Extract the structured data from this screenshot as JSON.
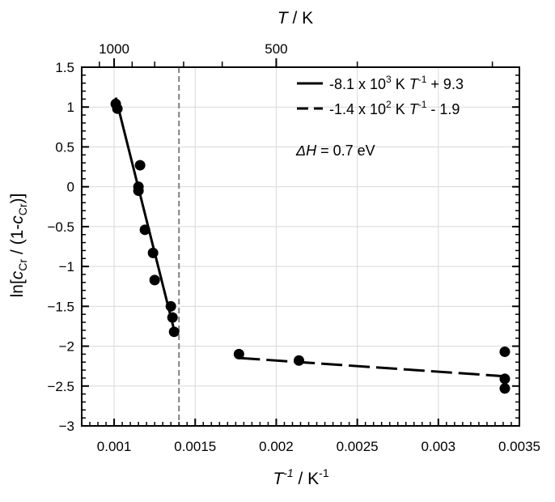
{
  "chart_data": {
    "type": "scatter",
    "title": "",
    "xlim": [
      0.0008,
      0.0035
    ],
    "ylim": [
      -3,
      1.5
    ],
    "grid": true,
    "x_ticks": [
      {
        "value": 0.001,
        "label": "0.001"
      },
      {
        "value": 0.0015,
        "label": "0.0015"
      },
      {
        "value": 0.002,
        "label": "0.002"
      },
      {
        "value": 0.0025,
        "label": "0.0025"
      },
      {
        "value": 0.003,
        "label": "0.003"
      },
      {
        "value": 0.0035,
        "label": "0.0035"
      }
    ],
    "y_ticks": [
      {
        "value": 1.5,
        "label": "1.5"
      },
      {
        "value": 1,
        "label": "1"
      },
      {
        "value": 0.5,
        "label": "0.5"
      },
      {
        "value": 0,
        "label": "0"
      },
      {
        "value": -0.5,
        "label": "−0.5"
      },
      {
        "value": -1,
        "label": "−1"
      },
      {
        "value": -1.5,
        "label": "−1.5"
      },
      {
        "value": -2,
        "label": "−2"
      },
      {
        "value": -2.5,
        "label": "−2.5"
      },
      {
        "value": -3,
        "label": "−3"
      }
    ],
    "top_axis": {
      "ticks_K": [
        {
          "value": 1000,
          "label": "1000"
        },
        {
          "value": 500,
          "label": "500"
        }
      ],
      "minor_ticks_K": [
        1100,
        1000,
        900,
        800,
        700,
        600,
        500,
        400,
        300
      ]
    },
    "points": [
      {
        "x": 0.00101,
        "y": 1.04
      },
      {
        "x": 0.00102,
        "y": 0.98
      },
      {
        "x": 0.00116,
        "y": 0.27
      },
      {
        "x": 0.00115,
        "y": 0.0
      },
      {
        "x": 0.00115,
        "y": -0.05
      },
      {
        "x": 0.00119,
        "y": -0.54
      },
      {
        "x": 0.00124,
        "y": -0.83
      },
      {
        "x": 0.00125,
        "y": -1.17
      },
      {
        "x": 0.00135,
        "y": -1.5
      },
      {
        "x": 0.00136,
        "y": -1.64
      },
      {
        "x": 0.00137,
        "y": -1.82
      },
      {
        "x": 0.00177,
        "y": -2.1
      },
      {
        "x": 0.00214,
        "y": -2.18
      },
      {
        "x": 0.00341,
        "y": -2.07
      },
      {
        "x": 0.00341,
        "y": -2.41
      },
      {
        "x": 0.00341,
        "y": -2.53
      }
    ],
    "fits": [
      {
        "slope": -8100,
        "intercept": 9.3,
        "x_range": [
          0.00101,
          0.00137
        ],
        "style": "solid"
      },
      {
        "slope": -140,
        "intercept": -1.9,
        "x_range": [
          0.00177,
          0.00341
        ],
        "style": "dashed"
      }
    ],
    "vline": {
      "x": 0.0014,
      "color": "#808080"
    },
    "colors": {
      "marker": "#000000",
      "grid": "#d9d9d9",
      "vline": "#808080",
      "axis": "#000000"
    }
  },
  "labels": {
    "x_axis": {
      "a": "T",
      "b": "-1",
      "c": " / K",
      "d": "-1"
    },
    "top_axis": {
      "a": "T",
      "b": " / K"
    },
    "y_axis": {
      "a": "ln[",
      "b": "c",
      "c": "Cr",
      "d": " / (1-",
      "e": "c",
      "f": "Cr",
      "g": ")]"
    }
  },
  "legend": {
    "placement": "top-right",
    "entries": [
      {
        "style": "solid",
        "p1": "-8.1 x 10",
        "p2": "3",
        "p3": " K ",
        "p4": "T",
        "p5": "-1",
        "p6": " + 9.3"
      },
      {
        "style": "dashed",
        "p1": "-1.4 x 10",
        "p2": "2",
        "p3": " K ",
        "p4": "T",
        "p5": "-1",
        "p6": " - 1.9"
      }
    ]
  },
  "annotation": {
    "a": "ΔH",
    "b": " = 0.7 eV"
  }
}
